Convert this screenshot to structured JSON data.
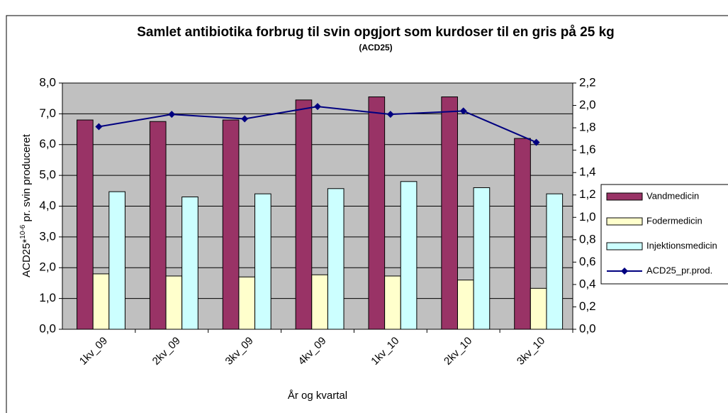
{
  "chart_data": {
    "type": "bar",
    "title": "Samlet antibiotika forbrug til svin opgjort som kurdoser til en gris på 25 kg",
    "subtitle": "(ACD25)",
    "xlabel": "År og kvartal",
    "ylabel": {
      "main": "ACD25*",
      "sup": "10-6",
      "rest": " pr. svin produceret"
    },
    "categories": [
      "1kv_09",
      "2kv_09",
      "3kv_09",
      "4kv_09",
      "1kv_10",
      "2kv_10",
      "3kv_10"
    ],
    "series": [
      {
        "name": "Vandmedicin",
        "color": "#993366",
        "values": [
          6.8,
          6.75,
          6.8,
          7.45,
          7.55,
          7.55,
          6.2
        ]
      },
      {
        "name": "Fodermedicin",
        "color": "#ffffcc",
        "values": [
          1.8,
          1.73,
          1.7,
          1.77,
          1.73,
          1.6,
          1.33
        ]
      },
      {
        "name": "Injektionsmedicin",
        "color": "#ccffff",
        "values": [
          4.47,
          4.3,
          4.4,
          4.57,
          4.8,
          4.6,
          4.4
        ]
      },
      {
        "name": "ACD25_pr.prod.",
        "color": "#000080",
        "type": "line",
        "axis": "y2",
        "values": [
          1.81,
          1.92,
          1.88,
          1.99,
          1.92,
          1.95,
          1.67
        ]
      }
    ],
    "ylim": [
      0,
      8
    ],
    "yticks": [
      {
        "value": 0,
        "label": "0,0"
      },
      {
        "value": 1,
        "label": "1,0"
      },
      {
        "value": 2,
        "label": "2,0"
      },
      {
        "value": 3,
        "label": "3,0"
      },
      {
        "value": 4,
        "label": "4,0"
      },
      {
        "value": 5,
        "label": "5,0"
      },
      {
        "value": 6,
        "label": "6,0"
      },
      {
        "value": 7,
        "label": "7,0"
      },
      {
        "value": 8,
        "label": "8,0"
      }
    ],
    "y2lim": [
      0,
      2.2
    ],
    "y2ticks": [
      {
        "value": 0,
        "label": "0,0"
      },
      {
        "value": 0.2,
        "label": "0,2"
      },
      {
        "value": 0.4,
        "label": "0,4"
      },
      {
        "value": 0.6,
        "label": "0,6"
      },
      {
        "value": 0.8,
        "label": "0,8"
      },
      {
        "value": 1.0,
        "label": "1,0"
      },
      {
        "value": 1.2,
        "label": "1,2"
      },
      {
        "value": 1.4,
        "label": "1,4"
      },
      {
        "value": 1.6,
        "label": "1,6"
      },
      {
        "value": 1.8,
        "label": "1,8"
      },
      {
        "value": 2.0,
        "label": "2,0"
      },
      {
        "value": 2.2,
        "label": "2,2"
      }
    ],
    "grid": true,
    "plot_background": "#c0c0c0",
    "legend": "right"
  }
}
